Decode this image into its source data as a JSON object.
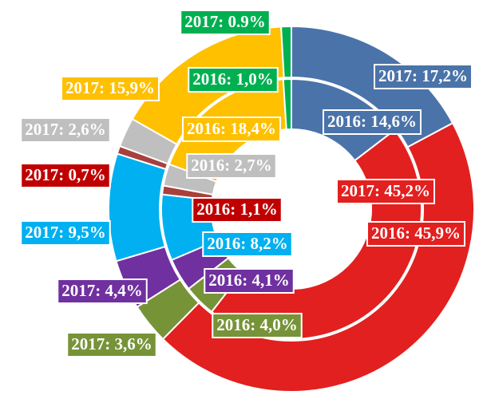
{
  "chart_data": {
    "type": "donut",
    "colors": [
      "#4a73a9",
      "#e2201f",
      "#779338",
      "#7030a0",
      "#00b0f0",
      "#a8403c",
      "#bfbfbf",
      "#ffc000",
      "#00b050"
    ],
    "series": [
      {
        "values": [
          17.2,
          45.2,
          3.6,
          4.4,
          9.5,
          0.7,
          2.6,
          15.9,
          0.9
        ],
        "value_labels": [
          "2017: 17,2%",
          "2017: 45,2%",
          "2017: 3,6%",
          "2017: 4,4%",
          "2017: 9,5%",
          "2017: 0,7%",
          "2017: 2,6%",
          "2017: 15,9%",
          "2017: 0.9%"
        ]
      },
      {
        "values": [
          14.6,
          45.9,
          4.0,
          4.1,
          8.2,
          1.1,
          2.7,
          18.4,
          1.0
        ],
        "value_labels": [
          "2016: 14,6%",
          "2016: 45,9%",
          "2016: 4,0%",
          "2016: 4,1%",
          "2016: 8,2%",
          "2016: 1,1%",
          "2016: 2,7%",
          "2016: 18,4%",
          "2016: 1,0%"
        ]
      }
    ]
  }
}
